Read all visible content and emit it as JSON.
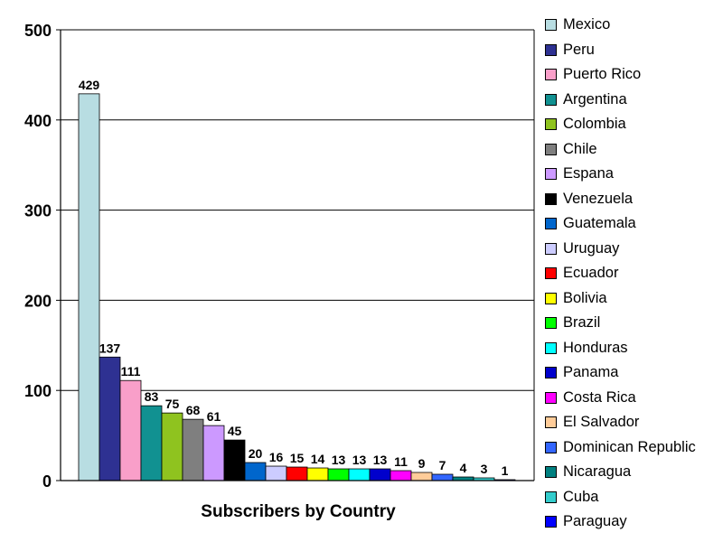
{
  "chart_data": {
    "type": "bar",
    "title": "",
    "xlabel": "Subscribers by Country",
    "ylabel": "",
    "ylim": [
      0,
      500
    ],
    "yticks": [
      "0",
      "100",
      "200",
      "300",
      "400",
      "500"
    ],
    "grid": true,
    "legend_position": "right",
    "categories": [
      "Mexico",
      "Peru",
      "Puerto Rico",
      "Argentina",
      "Colombia",
      "Chile",
      "Espana",
      "Venezuela",
      "Guatemala",
      "Uruguay",
      "Ecuador",
      "Bolivia",
      "Brazil",
      "Honduras",
      "Panama",
      "Costa Rica",
      "El Salvador",
      "Dominican Republic",
      "Nicaragua",
      "Cuba",
      "Paraguay"
    ],
    "values": [
      429,
      137,
      111,
      83,
      75,
      68,
      61,
      45,
      20,
      16,
      15,
      14,
      13,
      13,
      13,
      11,
      9,
      7,
      4,
      3,
      1
    ],
    "colors": [
      "#b8dde2",
      "#2e3192",
      "#f99fc9",
      "#119191",
      "#8fc31f",
      "#7f7f7f",
      "#cc99ff",
      "#000000",
      "#0066cc",
      "#ccccff",
      "#ff0000",
      "#ffff00",
      "#00ff00",
      "#00ffff",
      "#0000cc",
      "#ff00ff",
      "#ffcc99",
      "#3366ff",
      "#008080",
      "#33cccc",
      "#0000ff"
    ]
  }
}
